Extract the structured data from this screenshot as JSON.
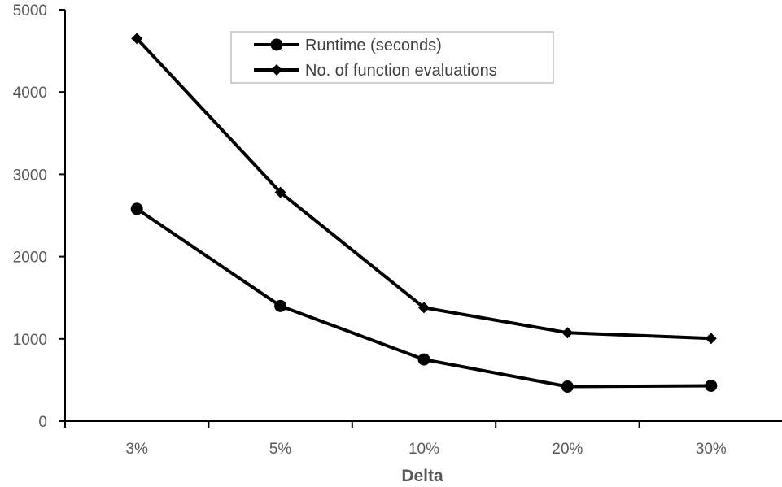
{
  "chart_data": {
    "type": "line",
    "categories": [
      "3%",
      "5%",
      "10%",
      "20%",
      "30%"
    ],
    "series": [
      {
        "name": "Runtime (seconds)",
        "marker": "circle",
        "values": [
          2580,
          1400,
          750,
          420,
          430
        ]
      },
      {
        "name": "No. of function evaluations",
        "marker": "diamond",
        "values": [
          4650,
          2780,
          1380,
          1075,
          1005
        ]
      }
    ],
    "title": "",
    "xlabel": "Delta",
    "ylabel": "",
    "ylim": [
      0,
      5000
    ],
    "yticks": [
      "0",
      "1000",
      "2000",
      "3000",
      "4000",
      "5000"
    ],
    "grid": false,
    "legend_position": "top-center",
    "colors": {
      "line": "#000000",
      "axis": "#000000",
      "text": "#595959",
      "legend_border": "#bfbfbf"
    }
  }
}
